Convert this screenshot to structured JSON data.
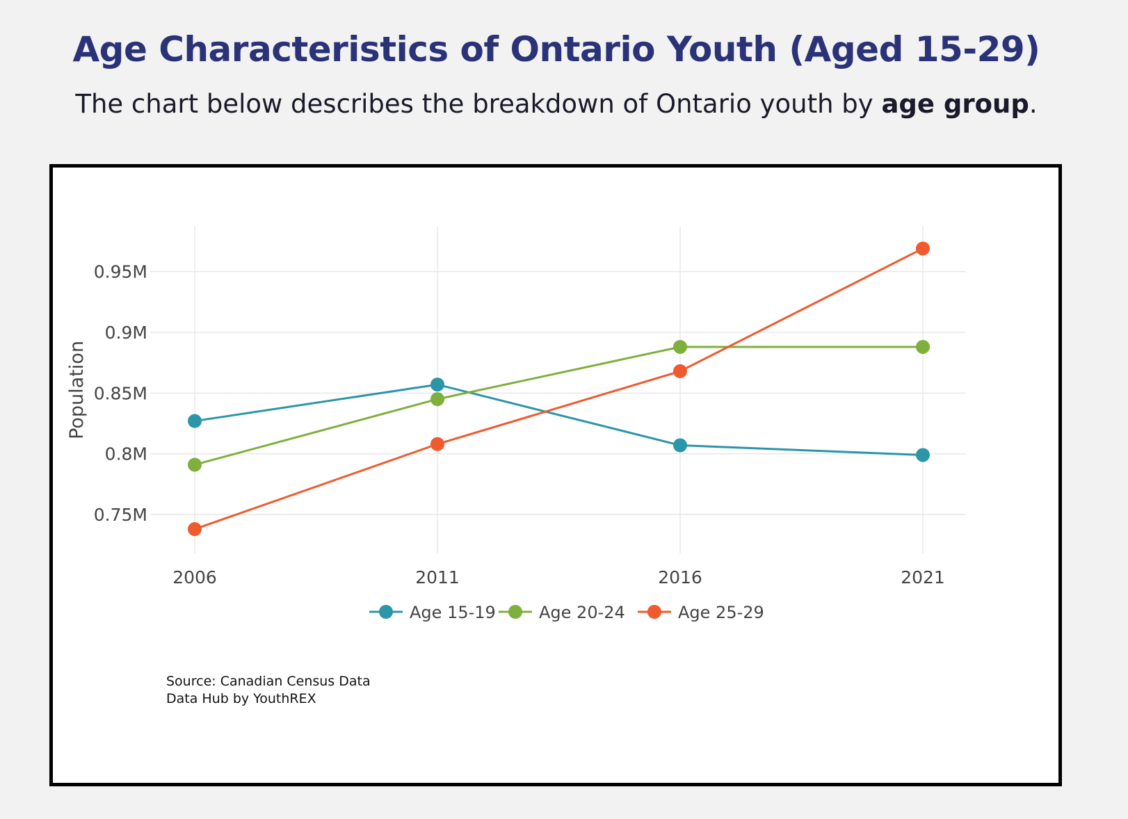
{
  "header": {
    "title": "Age Characteristics of Ontario Youth (Aged 15-29)",
    "subtitle_before": "The chart below describes the breakdown of Ontario youth by ",
    "subtitle_bold": "age group",
    "subtitle_after": "."
  },
  "chart_data": {
    "type": "line",
    "title": "",
    "xlabel": "",
    "ylabel": "Population",
    "x": [
      "2006",
      "2011",
      "2016",
      "2021"
    ],
    "ylim": [
      0.718,
      0.987
    ],
    "yticks": [
      0.75,
      0.8,
      0.85,
      0.9,
      0.95
    ],
    "ytick_labels": [
      "0.75M",
      "0.8M",
      "0.85M",
      "0.9M",
      "0.95M"
    ],
    "grid": true,
    "legend_position": "bottom-center",
    "series": [
      {
        "name": "Age 15-19",
        "color": "#2a96a8",
        "values": [
          0.827,
          0.857,
          0.807,
          0.799
        ]
      },
      {
        "name": "Age 20-24",
        "color": "#7faf3c",
        "values": [
          0.791,
          0.845,
          0.888,
          0.888
        ]
      },
      {
        "name": "Age 25-29",
        "color": "#ef5a2e",
        "values": [
          0.738,
          0.808,
          0.868,
          0.969
        ]
      }
    ]
  },
  "source": {
    "line1": "Source: Canadian Census Data",
    "line2": "Data Hub by YouthREX"
  }
}
